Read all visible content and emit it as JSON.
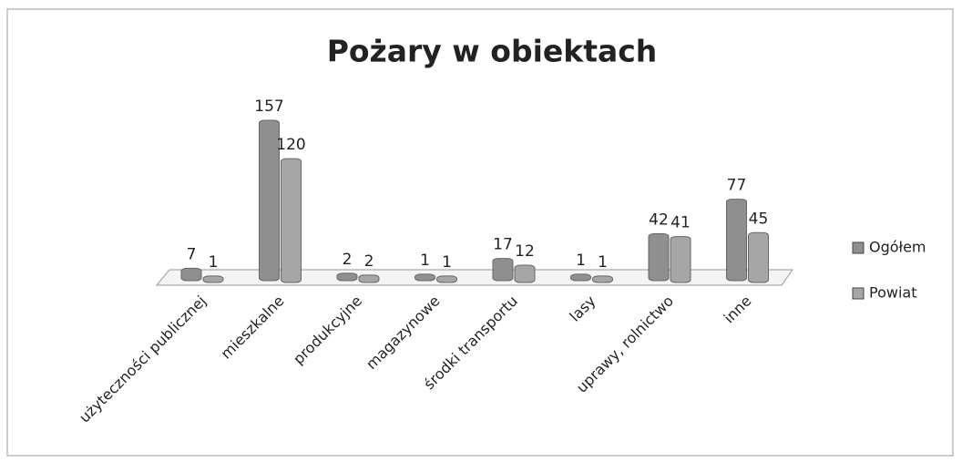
{
  "chart_data": {
    "type": "bar",
    "title": "Pożary w obiektach",
    "categories": [
      "użyteczności publicznej",
      "mieszkalne",
      "produkcyjne",
      "magazynowe",
      "środki transportu",
      "lasy",
      "uprawy, rolnictwo",
      "inne"
    ],
    "series": [
      {
        "name": "Ogółem",
        "color": "#8f8f8f",
        "values": [
          7,
          157,
          2,
          1,
          17,
          1,
          42,
          77
        ]
      },
      {
        "name": "Powiat",
        "color": "#a6a6a6",
        "values": [
          1,
          120,
          2,
          1,
          12,
          1,
          41,
          45
        ]
      }
    ],
    "legend": "right"
  }
}
